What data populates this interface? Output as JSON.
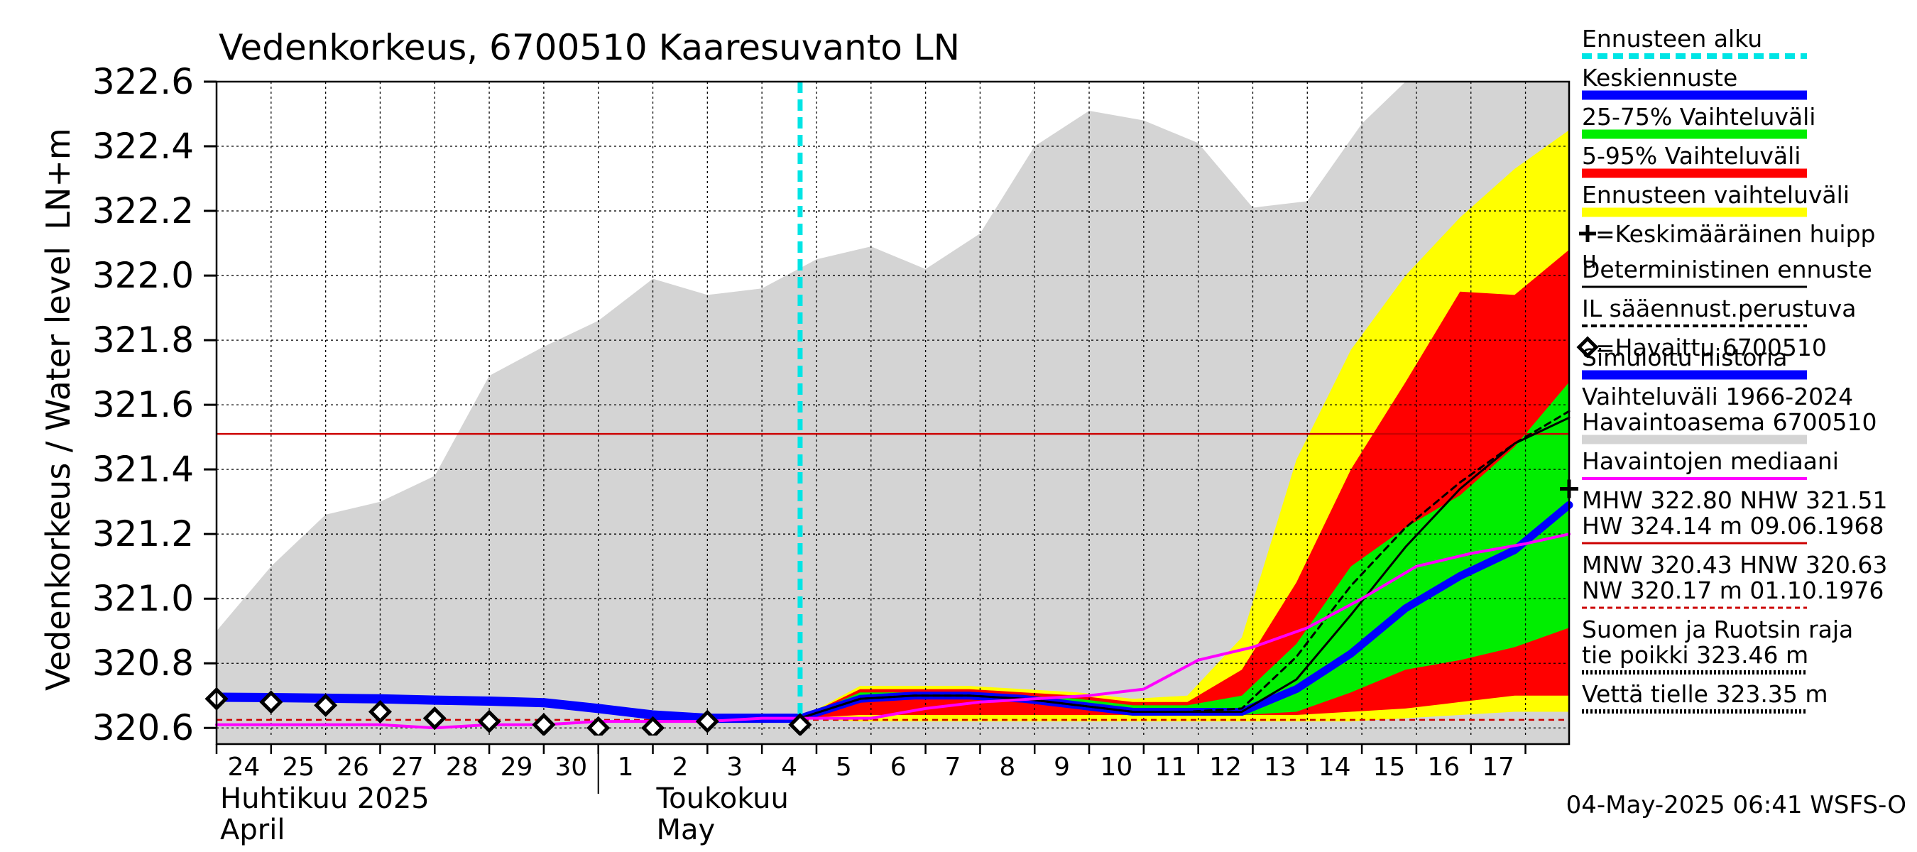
{
  "chart_data": {
    "type": "area",
    "title": "Vedenkorkeus, 6700510 Kaaresuvanto LN",
    "ylabel_line1": "Vedenkorkeus / Water level",
    "ylabel_line2": "LN+m",
    "ylim": [
      320.55,
      322.6
    ],
    "yticks": [
      320.6,
      320.8,
      321.0,
      321.2,
      321.4,
      321.6,
      321.8,
      322.0,
      322.2,
      322.4,
      322.6
    ],
    "ytick_labels": [
      "320.6",
      "320.8",
      "321.0",
      "321.2",
      "321.4",
      "321.6",
      "321.8",
      "322.0",
      "322.2",
      "322.4",
      "322.6"
    ],
    "xlim": [
      -7,
      17.8
    ],
    "x_unit": "day relative to 1 May 2025",
    "day_ticks": [
      -7,
      -6,
      -5,
      -4,
      -3,
      -2,
      -1,
      0,
      1,
      2,
      3,
      4,
      5,
      6,
      7,
      8,
      9,
      10,
      11,
      12,
      13,
      14,
      15,
      16,
      17
    ],
    "day_labels": [
      "24",
      "25",
      "26",
      "27",
      "28",
      "29",
      "30",
      "1",
      "2",
      "3",
      "4",
      "5",
      "6",
      "7",
      "8",
      "9",
      "10",
      "11",
      "12",
      "13",
      "14",
      "15",
      "16",
      "17"
    ],
    "month_labels": [
      {
        "day": -7,
        "fi": "Huhtikuu  2025",
        "en": "April"
      },
      {
        "day": 1,
        "fi": "Toukokuu",
        "en": "May"
      }
    ],
    "month_divider_day": 0,
    "forecast_start": 3.7,
    "hw_line": 321.51,
    "nw_line": 320.625,
    "history_range": {
      "x": [
        -7,
        -6,
        -5,
        -4,
        -3,
        -2,
        -1,
        0,
        1,
        2,
        3,
        4,
        5,
        6,
        7,
        8,
        9,
        10,
        11,
        12,
        13,
        14,
        14.8,
        15.5,
        16,
        17,
        17.8
      ],
      "low": [
        320.57,
        320.57,
        320.57,
        320.57,
        320.57,
        320.57,
        320.57,
        320.57,
        320.57,
        320.57,
        320.57,
        320.57,
        320.57,
        320.57,
        320.57,
        320.57,
        320.57,
        320.57,
        320.57,
        320.57,
        320.57,
        320.57,
        320.57,
        320.57,
        320.57,
        320.57,
        320.57
      ],
      "high": [
        320.9,
        321.1,
        321.26,
        321.3,
        321.38,
        321.69,
        321.78,
        321.86,
        321.99,
        321.94,
        321.96,
        322.05,
        322.09,
        322.02,
        322.13,
        322.4,
        322.51,
        322.48,
        322.41,
        322.21,
        322.23,
        322.47,
        322.6,
        322.6,
        322.6,
        322.6,
        322.6
      ]
    },
    "forecast_bands": {
      "x": [
        3.7,
        4.8,
        5.8,
        6.8,
        7.8,
        8.8,
        9.8,
        10.8,
        11.8,
        12.8,
        13.8,
        14.8,
        15.8,
        16.8,
        17.8
      ],
      "p0": [
        320.63,
        320.62,
        320.62,
        320.62,
        320.62,
        320.62,
        320.62,
        320.62,
        320.62,
        320.62,
        320.62,
        320.63,
        320.64,
        320.65,
        320.65
      ],
      "p5": [
        320.63,
        320.64,
        320.64,
        320.64,
        320.64,
        320.64,
        320.64,
        320.64,
        320.64,
        320.64,
        320.65,
        320.66,
        320.68,
        320.7,
        320.7
      ],
      "p25": [
        320.63,
        320.68,
        320.69,
        320.69,
        320.68,
        320.66,
        320.64,
        320.64,
        320.64,
        320.65,
        320.71,
        320.78,
        320.81,
        320.85,
        320.91
      ],
      "p75": [
        320.63,
        320.71,
        320.71,
        320.71,
        320.7,
        320.69,
        320.67,
        320.67,
        320.7,
        320.86,
        321.1,
        321.22,
        321.32,
        321.47,
        321.67
      ],
      "p95": [
        320.63,
        320.72,
        320.72,
        320.72,
        320.71,
        320.7,
        320.68,
        320.68,
        320.78,
        321.05,
        321.4,
        321.67,
        321.95,
        321.94,
        322.08
      ],
      "p100": [
        320.63,
        320.73,
        320.73,
        320.73,
        320.72,
        320.71,
        320.69,
        320.7,
        320.88,
        321.43,
        321.77,
        322.0,
        322.18,
        322.33,
        322.45
      ]
    },
    "series": [
      {
        "name": "Simuloitu historia",
        "color": "#0000ff",
        "x": [
          -7,
          -6,
          -5,
          -4,
          -3,
          -2,
          -1,
          0,
          1,
          2,
          3,
          3.7
        ],
        "y": [
          320.695,
          320.694,
          320.692,
          320.69,
          320.686,
          320.683,
          320.678,
          320.66,
          320.64,
          320.63,
          320.63,
          320.63
        ]
      },
      {
        "name": "Keskiennuste",
        "color": "#0000ff",
        "x": [
          3.7,
          4.8,
          5.8,
          6.8,
          7.8,
          8.8,
          9.8,
          10.8,
          11.8,
          12.8,
          13.8,
          14.8,
          15.8,
          16.8,
          17.8
        ],
        "y": [
          320.63,
          320.69,
          320.7,
          320.7,
          320.69,
          320.67,
          320.65,
          320.65,
          320.65,
          320.72,
          320.83,
          320.97,
          321.07,
          321.15,
          321.29
        ]
      },
      {
        "name": "Deterministinen ennuste",
        "color": "#000000",
        "x": [
          3.7,
          4.8,
          5.8,
          6.8,
          7.8,
          8.8,
          9.8,
          10.8,
          11.8,
          12.8,
          13.8,
          14.8,
          15.8,
          16.8,
          17.8
        ],
        "y": [
          320.63,
          320.69,
          320.7,
          320.7,
          320.69,
          320.67,
          320.65,
          320.65,
          320.65,
          320.75,
          320.95,
          321.16,
          321.34,
          321.48,
          321.56
        ]
      },
      {
        "name": "IL sääennust.perustuva",
        "color": "#000000",
        "x": [
          3.7,
          4.8,
          5.8,
          6.8,
          7.8,
          8.8,
          9.8,
          10.8,
          11.8,
          12.8,
          13.8,
          14.8,
          15.8,
          16.8,
          17.8
        ],
        "y": [
          320.63,
          320.69,
          320.7,
          320.7,
          320.69,
          320.67,
          320.65,
          320.65,
          320.66,
          320.82,
          321.04,
          321.22,
          321.36,
          321.48,
          321.58
        ]
      },
      {
        "name": "Havaintojen mediaani",
        "color": "#ff00ff",
        "x": [
          -7,
          -6,
          -5,
          -4,
          -3,
          -2,
          -1,
          0,
          1,
          2,
          3,
          4,
          5,
          6,
          7,
          8,
          9,
          10,
          11,
          12,
          13,
          14,
          15,
          16,
          17,
          17.8
        ],
        "y": [
          320.61,
          320.61,
          320.61,
          320.61,
          320.6,
          320.61,
          320.61,
          320.62,
          320.62,
          320.62,
          320.63,
          320.63,
          320.63,
          320.66,
          320.68,
          320.69,
          320.7,
          320.72,
          320.81,
          320.85,
          320.91,
          321.0,
          321.1,
          321.14,
          321.17,
          321.2
        ]
      }
    ],
    "observed": {
      "name": "=Havaittu 6700510",
      "x": [
        -7,
        -6,
        -5,
        -4,
        -3,
        -2,
        -1,
        0,
        1,
        2,
        3.7
      ],
      "y": [
        320.69,
        320.68,
        320.67,
        320.65,
        320.63,
        320.62,
        320.61,
        320.6,
        320.6,
        320.62,
        320.61
      ]
    },
    "mean_peak": {
      "x": 17.8,
      "y": 321.34
    },
    "legend": [
      {
        "label": "Ennusteen alku",
        "style": "cyan-dash"
      },
      {
        "label": "Keskiennuste",
        "style": "blue"
      },
      {
        "label": "25-75% Vaihteluväli",
        "style": "green"
      },
      {
        "label": "5-95% Vaihteluväli",
        "style": "red"
      },
      {
        "label": "Ennusteen vaihteluväli",
        "style": "yellow"
      },
      {
        "label": "=Keskimääräinen huipp",
        "label2": "u",
        "style": "plus"
      },
      {
        "label": "Deterministinen ennuste",
        "style": "black"
      },
      {
        "label": "IL sääennust.perustuva",
        "style": "black-dash"
      },
      {
        "label": "=Havaittu 6700510",
        "style": "diamond"
      },
      {
        "label": "Simuloitu historia",
        "style": "blue"
      },
      {
        "label": "Vaihteluväli 1966-2024",
        "label2": " Havaintoasema 6700510",
        "style": "gray"
      },
      {
        "label": "Havaintojen mediaani",
        "style": "magenta"
      },
      {
        "label": "MHW 322.80 NHW 321.51",
        "label2": "HW 324.14 m 09.06.1968",
        "style": "red-thin"
      },
      {
        "label": "MNW 320.43 HNW 320.63",
        "label2": "NW 320.17 m 01.10.1976",
        "style": "red-dash"
      },
      {
        "label": "Suomen ja Ruotsin raja",
        "label2": "tie poikki 323.46 m",
        "style": "black-dot"
      },
      {
        "label": "Vettä tielle 323.35 m",
        "style": "black-dot"
      }
    ],
    "colors": {
      "history": "#d4d4d4",
      "yellow": "#ffff00",
      "red": "#ff0000",
      "green": "#00ee00",
      "blue": "#0000ff",
      "cyan": "#00e5e5",
      "magenta": "#ff00ff",
      "hw": "#cc0000"
    }
  },
  "footer": "04-May-2025 06:41 WSFS-O"
}
